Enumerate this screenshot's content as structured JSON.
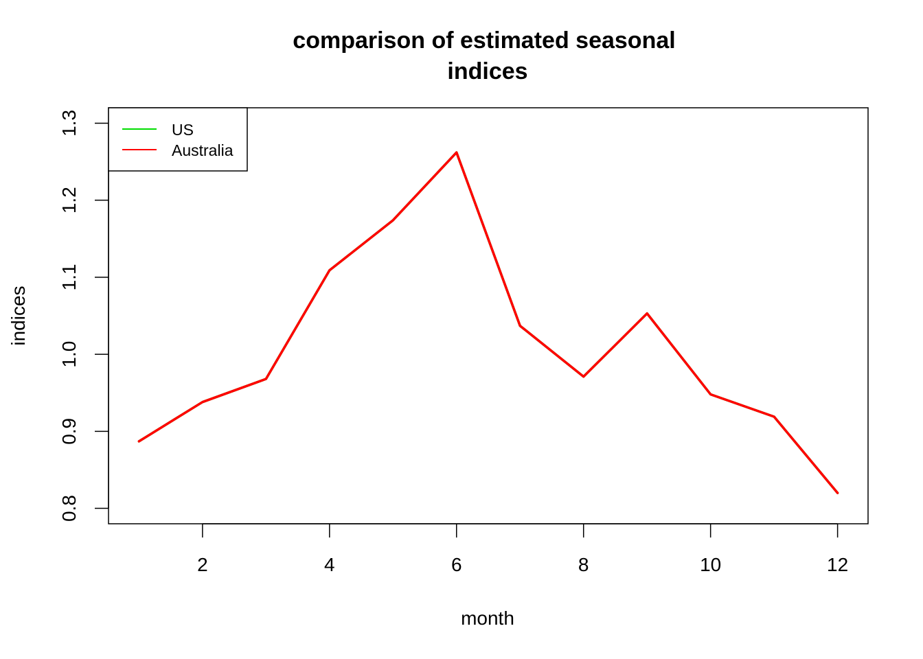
{
  "chart_data": {
    "type": "line",
    "title_lines": [
      "comparison of estimated seasonal",
      "indices"
    ],
    "xlabel": "month",
    "ylabel": "indices",
    "x": [
      1,
      2,
      3,
      4,
      5,
      6,
      7,
      8,
      9,
      10,
      11,
      12
    ],
    "xlim": [
      0.52,
      12.48
    ],
    "ylim": [
      0.78,
      1.32
    ],
    "xticks": [
      2,
      4,
      6,
      8,
      10,
      12
    ],
    "xtick_labels": [
      "2",
      "4",
      "6",
      "8",
      "10",
      "12"
    ],
    "yticks": [
      0.8,
      0.9,
      1.0,
      1.1,
      1.2,
      1.3
    ],
    "ytick_labels": [
      "0.8",
      "0.9",
      "1.0",
      "1.1",
      "1.2",
      "1.3"
    ],
    "grid": false,
    "legend_position": "top-left",
    "series": [
      {
        "name": "US",
        "color": "#00dd00",
        "values": [
          0.887,
          0.938,
          0.968,
          1.109,
          1.174,
          1.262,
          1.037,
          0.971,
          1.053,
          0.948,
          0.919,
          0.82
        ]
      },
      {
        "name": "Australia",
        "color": "#ff0000",
        "values": [
          0.887,
          0.938,
          0.968,
          1.109,
          1.174,
          1.262,
          1.037,
          0.971,
          1.053,
          0.948,
          0.919,
          0.82
        ]
      }
    ]
  }
}
